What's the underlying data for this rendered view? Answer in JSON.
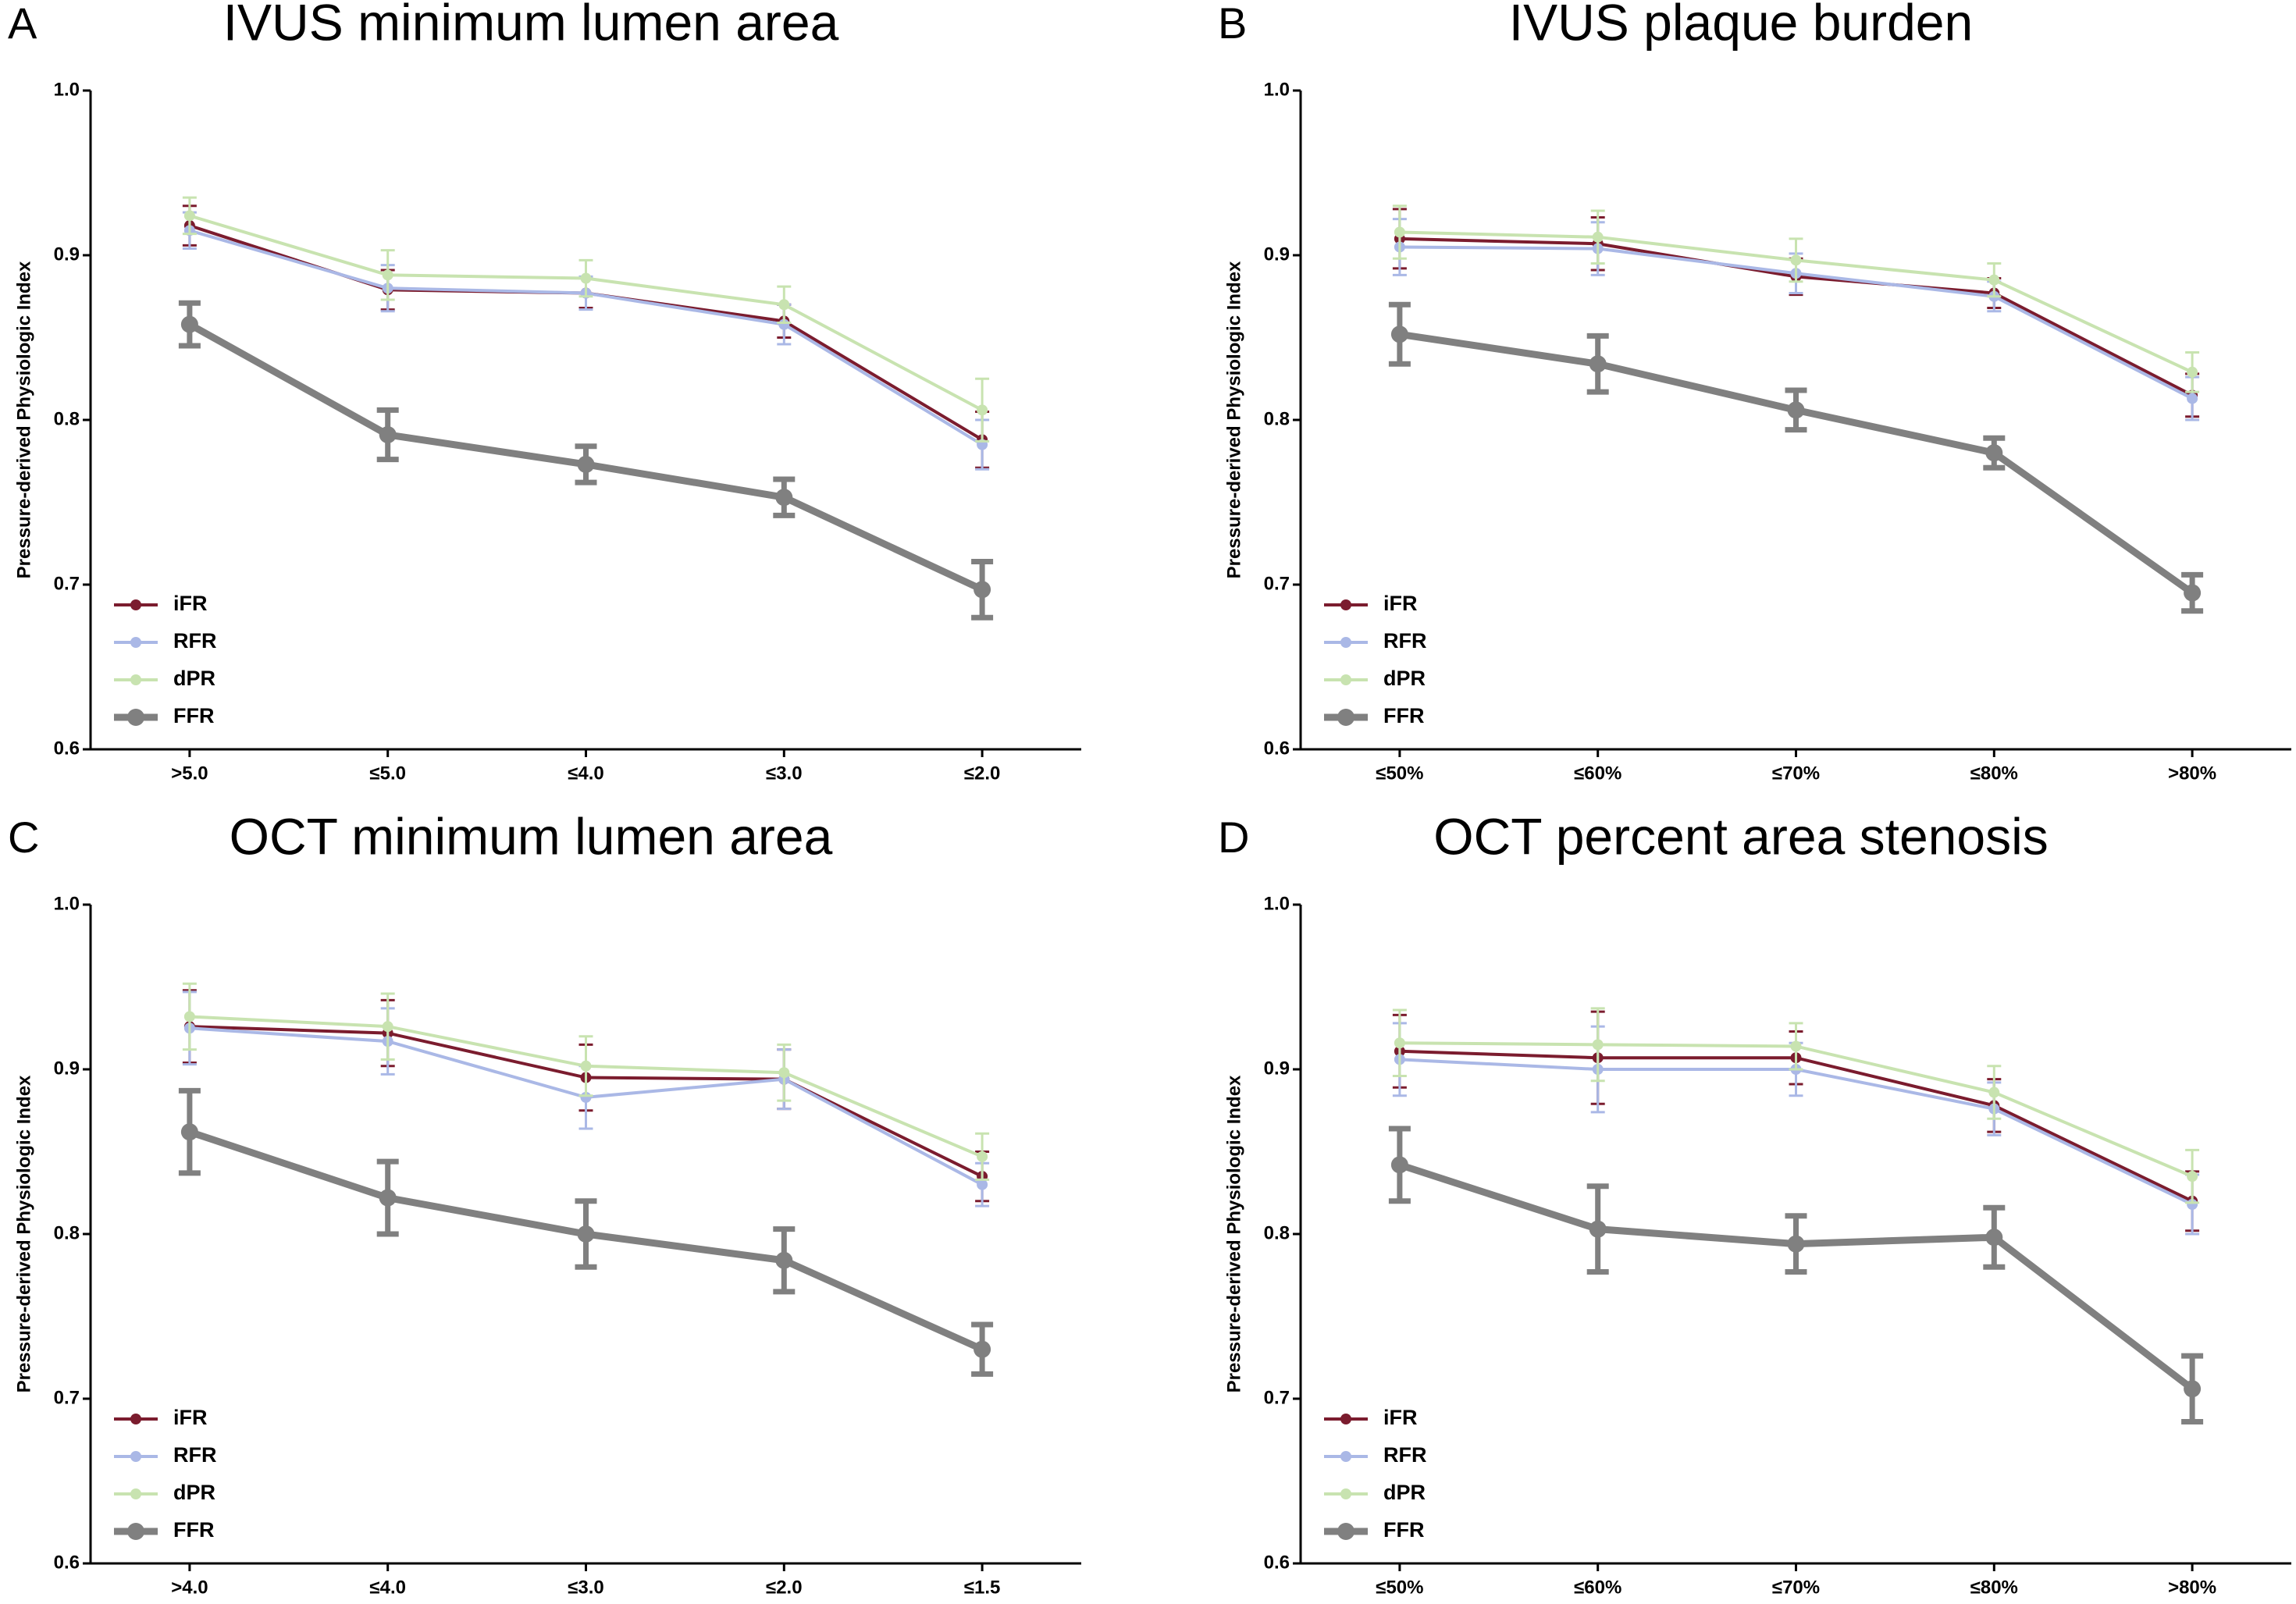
{
  "chart_data": [
    {
      "type": "line",
      "label": "A",
      "title": "IVUS minimum lumen area",
      "ylabel": "Pressure-derived Physiologic Index",
      "categories": [
        ">5.0",
        "≤5.0",
        "≤4.0",
        "≤3.0",
        "≤2.0"
      ],
      "ylim": [
        0.6,
        1.0
      ],
      "yticks": [
        0.6,
        0.7,
        0.8,
        0.9,
        {
          "value": 1.0,
          "label": "1.0"
        }
      ],
      "legend": "lower left",
      "series": [
        {
          "name": "iFR",
          "color": "#7b1c2e",
          "values": [
            0.918,
            0.879,
            0.877,
            0.86,
            0.788
          ],
          "errors": [
            0.012,
            0.012,
            0.009,
            0.01,
            0.017
          ]
        },
        {
          "name": "RFR",
          "color": "#aab8e6",
          "values": [
            0.915,
            0.88,
            0.877,
            0.858,
            0.785
          ],
          "errors": [
            0.011,
            0.014,
            0.01,
            0.012,
            0.015
          ]
        },
        {
          "name": "dPR",
          "color": "#c8e3b0",
          "values": [
            0.924,
            0.888,
            0.886,
            0.87,
            0.806
          ],
          "errors": [
            0.011,
            0.015,
            0.011,
            0.011,
            0.019
          ]
        },
        {
          "name": "FFR",
          "color": "#808080",
          "values": [
            0.858,
            0.791,
            0.773,
            0.753,
            0.697
          ],
          "errors": [
            0.013,
            0.015,
            0.011,
            0.011,
            0.017
          ]
        }
      ]
    },
    {
      "type": "line",
      "label": "B",
      "title": "IVUS plaque burden",
      "ylabel": "Pressure-derived Physiologic Index",
      "categories": [
        "≤50%",
        "≤60%",
        "≤70%",
        "≤80%",
        ">80%"
      ],
      "ylim": [
        0.6,
        1.0
      ],
      "yticks": [
        0.6,
        0.7,
        0.8,
        0.9,
        {
          "value": 1.0,
          "label": "1.0"
        }
      ],
      "legend": "lower left",
      "series": [
        {
          "name": "iFR",
          "color": "#7b1c2e",
          "values": [
            0.91,
            0.907,
            0.887,
            0.877,
            0.815
          ],
          "errors": [
            0.018,
            0.016,
            0.011,
            0.009,
            0.013
          ]
        },
        {
          "name": "RFR",
          "color": "#aab8e6",
          "values": [
            0.905,
            0.904,
            0.889,
            0.875,
            0.813
          ],
          "errors": [
            0.017,
            0.016,
            0.012,
            0.009,
            0.013
          ]
        },
        {
          "name": "dPR",
          "color": "#c8e3b0",
          "values": [
            0.914,
            0.911,
            0.897,
            0.885,
            0.829
          ],
          "errors": [
            0.016,
            0.016,
            0.013,
            0.01,
            0.012
          ]
        },
        {
          "name": "FFR",
          "color": "#808080",
          "values": [
            0.852,
            0.834,
            0.806,
            0.78,
            0.695
          ],
          "errors": [
            0.018,
            0.017,
            0.012,
            0.009,
            0.011
          ]
        }
      ]
    },
    {
      "type": "line",
      "label": "C",
      "title": "OCT minimum lumen area",
      "ylabel": "Pressure-derived Physiologic Index",
      "categories": [
        ">4.0",
        "≤4.0",
        "≤3.0",
        "≤2.0",
        "≤1.5"
      ],
      "ylim": [
        0.6,
        1.0
      ],
      "yticks": [
        0.6,
        0.7,
        0.8,
        0.9,
        {
          "value": 1.0,
          "label": "1.0"
        }
      ],
      "legend": "lower left",
      "series": [
        {
          "name": "iFR",
          "color": "#7b1c2e",
          "values": [
            0.926,
            0.922,
            0.895,
            0.894,
            0.835
          ],
          "errors": [
            0.022,
            0.02,
            0.02,
            0.018,
            0.015
          ]
        },
        {
          "name": "RFR",
          "color": "#aab8e6",
          "values": [
            0.925,
            0.917,
            0.883,
            0.894,
            0.83
          ],
          "errors": [
            0.022,
            0.02,
            0.019,
            0.018,
            0.013
          ]
        },
        {
          "name": "dPR",
          "color": "#c8e3b0",
          "values": [
            0.932,
            0.926,
            0.902,
            0.898,
            0.847
          ],
          "errors": [
            0.02,
            0.02,
            0.018,
            0.017,
            0.014
          ]
        },
        {
          "name": "FFR",
          "color": "#808080",
          "values": [
            0.862,
            0.822,
            0.8,
            0.784,
            0.73
          ],
          "errors": [
            0.025,
            0.022,
            0.02,
            0.019,
            0.015
          ]
        }
      ]
    },
    {
      "type": "line",
      "label": "D",
      "title": "OCT percent area stenosis",
      "ylabel": "Pressure-derived Physiologic Index",
      "categories": [
        "≤50%",
        "≤60%",
        "≤70%",
        "≤80%",
        ">80%"
      ],
      "ylim": [
        0.6,
        1.0
      ],
      "yticks": [
        0.6,
        0.7,
        0.8,
        0.9,
        {
          "value": 1.0,
          "label": "1.0"
        }
      ],
      "legend": "lower left",
      "series": [
        {
          "name": "iFR",
          "color": "#7b1c2e",
          "values": [
            0.911,
            0.907,
            0.907,
            0.878,
            0.82
          ],
          "errors": [
            0.022,
            0.028,
            0.016,
            0.016,
            0.018
          ]
        },
        {
          "name": "RFR",
          "color": "#aab8e6",
          "values": [
            0.906,
            0.9,
            0.9,
            0.876,
            0.818
          ],
          "errors": [
            0.022,
            0.026,
            0.016,
            0.016,
            0.018
          ]
        },
        {
          "name": "dPR",
          "color": "#c8e3b0",
          "values": [
            0.916,
            0.915,
            0.914,
            0.886,
            0.835
          ],
          "errors": [
            0.02,
            0.022,
            0.014,
            0.016,
            0.016
          ]
        },
        {
          "name": "FFR",
          "color": "#808080",
          "values": [
            0.842,
            0.803,
            0.794,
            0.798,
            0.706
          ],
          "errors": [
            0.022,
            0.026,
            0.017,
            0.018,
            0.02
          ]
        }
      ]
    }
  ]
}
